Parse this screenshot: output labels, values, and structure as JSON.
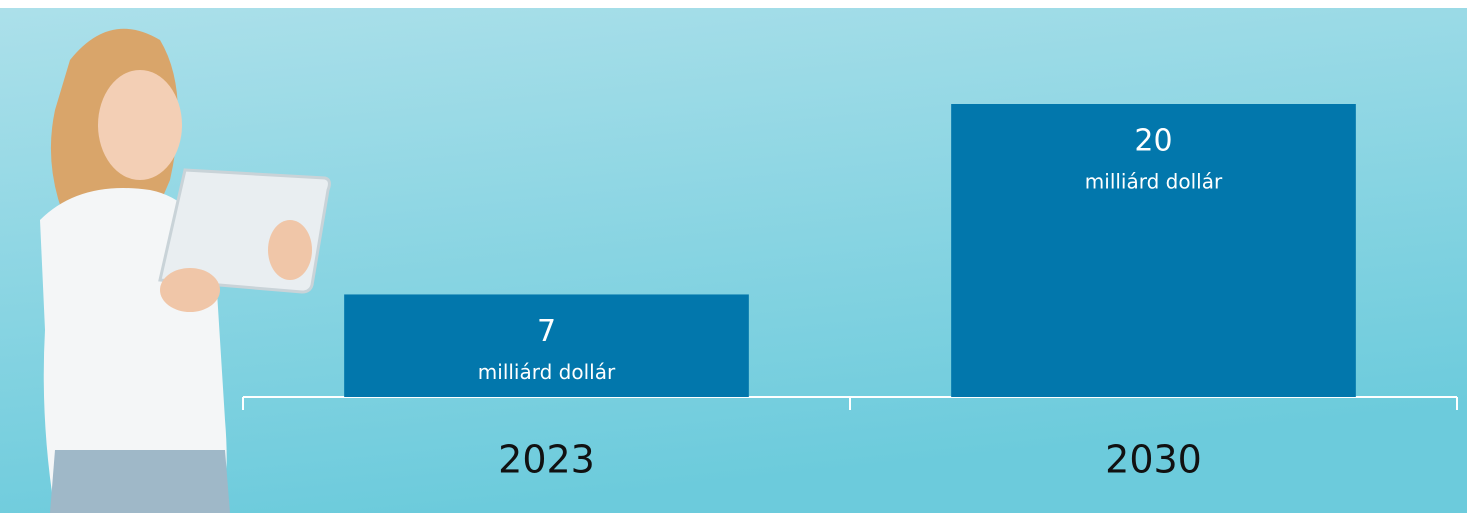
{
  "chart_data": {
    "type": "bar",
    "categories": [
      "2023",
      "2030"
    ],
    "values": [
      7,
      20
    ],
    "value_unit": "milliárd dollár",
    "color": "#0277ac",
    "ylim": [
      0,
      20
    ]
  }
}
